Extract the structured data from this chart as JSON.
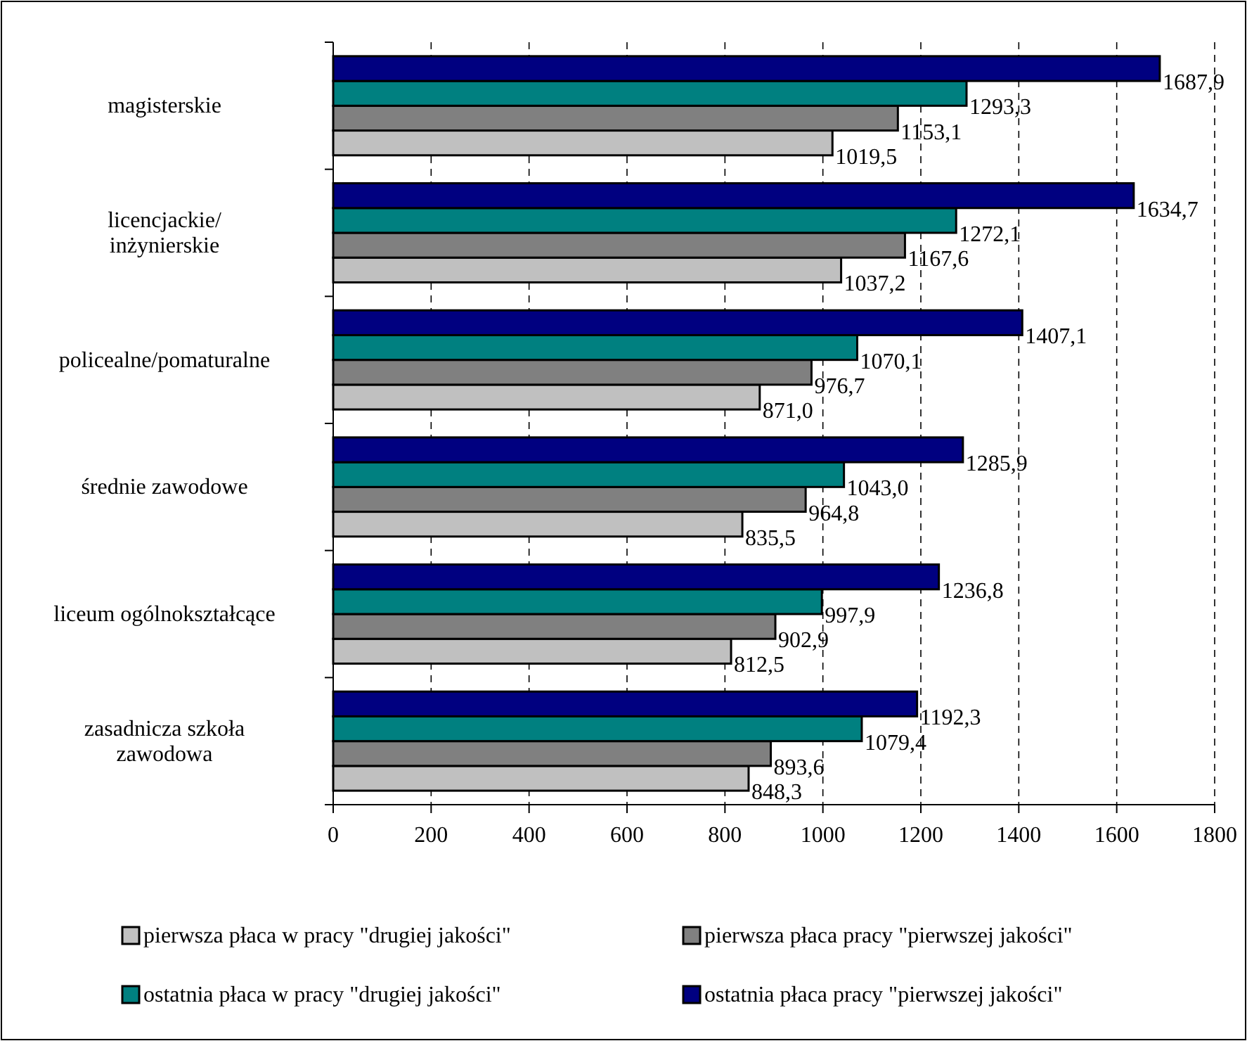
{
  "chart_data": {
    "type": "bar",
    "orientation": "horizontal",
    "categories": [
      "magisterskie",
      "licencjackie/\ninżynierskie",
      "policealne/pomaturalne",
      "średnie zawodowe",
      "liceum ogólnokształcące",
      "zasadnicza szkoła\nzawodowa"
    ],
    "series": [
      {
        "name": "pierwsza płaca w pracy \"drugiej jakości\"",
        "color": "#c0c0c0",
        "values": [
          1019.5,
          1037.2,
          871.0,
          835.5,
          812.5,
          848.3
        ],
        "value_labels": [
          "1019,5",
          "1037,2",
          "871,0",
          "835,5",
          "812,5",
          "848,3"
        ]
      },
      {
        "name": "pierwsza płaca pracy \"pierwszej jakości\"",
        "color": "#808080",
        "values": [
          1153.1,
          1167.6,
          976.7,
          964.8,
          902.9,
          893.6
        ],
        "value_labels": [
          "1153,1",
          "1167,6",
          "976,7",
          "964,8",
          "902,9",
          "893,6"
        ]
      },
      {
        "name": "ostatnia płaca w pracy \"drugiej jakości\"",
        "color": "#008080",
        "values": [
          1293.3,
          1272.1,
          1070.1,
          1043.0,
          997.9,
          1079.4
        ],
        "value_labels": [
          "1293,3",
          "1272,1",
          "1070,1",
          "1043,0",
          "997,9",
          "1079,4"
        ]
      },
      {
        "name": "ostatnia płaca pracy \"pierwszej jakości\"",
        "color": "#000080",
        "values": [
          1687.9,
          1634.7,
          1407.1,
          1285.9,
          1236.8,
          1192.3
        ],
        "value_labels": [
          "1687,9",
          "1634,7",
          "1407,1",
          "1285,9",
          "1236,8",
          "1192,3"
        ]
      }
    ],
    "xlim": [
      0,
      1800
    ],
    "xticks": [
      0,
      200,
      400,
      600,
      800,
      1000,
      1200,
      1400,
      1600,
      1800
    ],
    "grid": "x",
    "legend": "bottom"
  }
}
